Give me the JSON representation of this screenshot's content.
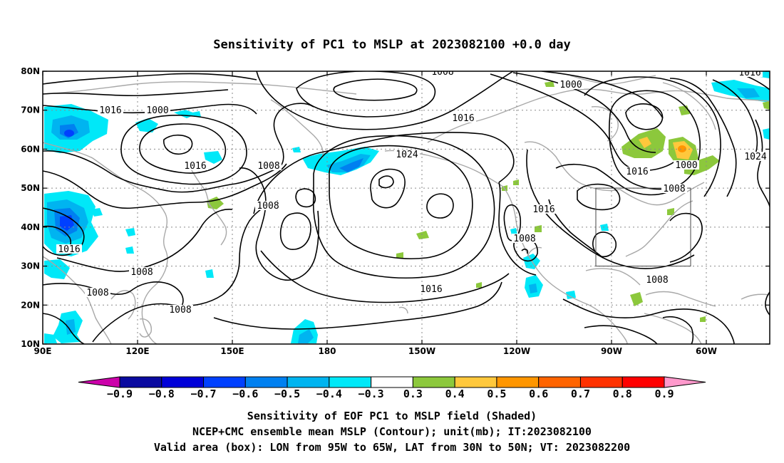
{
  "title": "Sensitivity of PC1 to MSLP at 2023082100 +0.0 day",
  "lat_labels": [
    "80N",
    "70N",
    "60N",
    "50N",
    "40N",
    "30N",
    "20N",
    "10N"
  ],
  "lon_labels": [
    "90E",
    "120E",
    "150E",
    "180",
    "150W",
    "120W",
    "90W",
    "60W"
  ],
  "contour_labels": [
    "1008",
    "1016",
    "1000",
    "1016",
    "1008",
    "1016",
    "1024",
    "1000",
    "1008",
    "1008",
    "1016",
    "1024",
    "1016",
    "1000",
    "1008",
    "1016",
    "1016",
    "1008",
    "1008",
    "1008",
    "1008",
    "1016",
    "1016"
  ],
  "colorbar": {
    "labels": [
      "-0.9",
      "-0.8",
      "-0.7",
      "-0.6",
      "-0.5",
      "-0.4",
      "-0.3",
      "0.3",
      "0.4",
      "0.5",
      "0.6",
      "0.7",
      "0.8",
      "0.9"
    ],
    "colors": [
      "#cc00aa",
      "#0a0aa0",
      "#0000d8",
      "#0040ff",
      "#0080f0",
      "#00b4f0",
      "#00e8f8",
      "#ffffff",
      "#8cc83c",
      "#ffc83c",
      "#ff9600",
      "#ff6400",
      "#ff3200",
      "#ff0000",
      "#ff99cc"
    ]
  },
  "captions": {
    "line1": "Sensitivity of EOF PC1 to MSLP field (Shaded)",
    "line2": "NCEP+CMC ensemble mean MSLP (Contour); unit(mb); IT:2023082100",
    "line3": "Valid area (box): LON from 95W to 65W, LAT from 30N to 50N; VT: 2023082200"
  },
  "valid_area": {
    "lon": "95W to 65W",
    "lat": "30N to 50N"
  }
}
